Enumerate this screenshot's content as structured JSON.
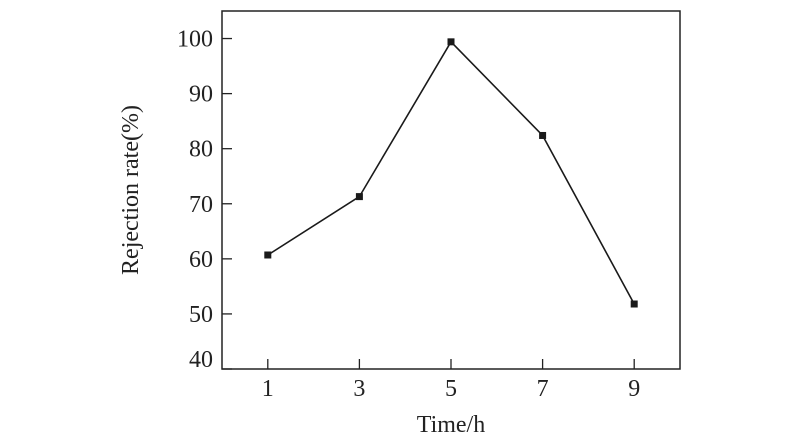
{
  "chart_data": {
    "type": "line",
    "title": "",
    "xlabel": "Time/h",
    "ylabel": "Rejection rate(%)",
    "x": [
      1,
      3,
      5,
      7,
      9
    ],
    "series": [
      {
        "values": [
          60.7,
          71.3,
          99.4,
          82.4,
          51.8
        ],
        "marker": "square",
        "color": "#1a1a1a"
      }
    ],
    "xticks": [
      1,
      3,
      5,
      7,
      9
    ],
    "yticks": [
      40,
      50,
      60,
      70,
      80,
      90,
      100
    ],
    "xlim": [
      0,
      10
    ],
    "ylim": [
      40,
      105
    ],
    "grid": false,
    "legend": "none"
  }
}
